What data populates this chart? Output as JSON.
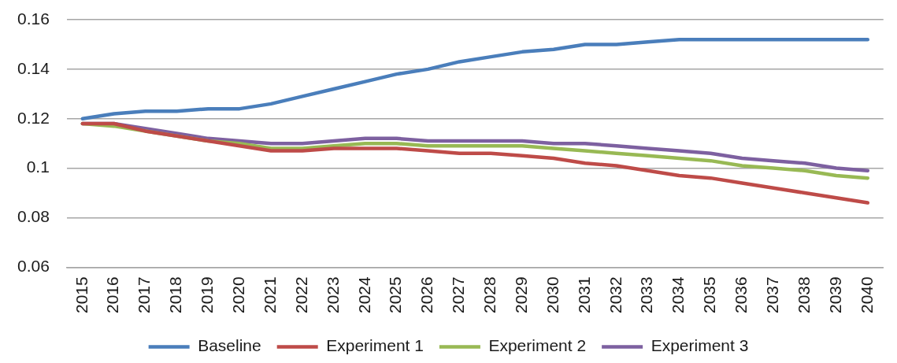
{
  "chart_data": {
    "type": "line",
    "categories": [
      "2015",
      "2016",
      "2017",
      "2018",
      "2019",
      "2020",
      "2021",
      "2022",
      "2023",
      "2024",
      "2025",
      "2026",
      "2027",
      "2028",
      "2029",
      "2030",
      "2031",
      "2032",
      "2033",
      "2034",
      "2035",
      "2036",
      "2037",
      "2038",
      "2039",
      "2040"
    ],
    "series": [
      {
        "name": "Baseline",
        "color": "#4a7ebb",
        "values": [
          0.12,
          0.122,
          0.123,
          0.123,
          0.124,
          0.124,
          0.126,
          0.129,
          0.132,
          0.135,
          0.138,
          0.14,
          0.143,
          0.145,
          0.147,
          0.148,
          0.15,
          0.15,
          0.151,
          0.152,
          0.152,
          0.152,
          0.152,
          0.152,
          0.152,
          0.152
        ]
      },
      {
        "name": "Experiment 1",
        "color": "#be4b48",
        "values": [
          0.118,
          0.118,
          0.115,
          0.113,
          0.111,
          0.109,
          0.107,
          0.107,
          0.108,
          0.108,
          0.108,
          0.107,
          0.106,
          0.106,
          0.105,
          0.104,
          0.102,
          0.101,
          0.099,
          0.097,
          0.096,
          0.094,
          0.092,
          0.09,
          0.088,
          0.086
        ]
      },
      {
        "name": "Experiment 2",
        "color": "#98b954",
        "values": [
          0.118,
          0.117,
          0.115,
          0.113,
          0.111,
          0.11,
          0.108,
          0.108,
          0.109,
          0.11,
          0.11,
          0.109,
          0.109,
          0.109,
          0.109,
          0.108,
          0.107,
          0.106,
          0.105,
          0.104,
          0.103,
          0.101,
          0.1,
          0.099,
          0.097,
          0.096
        ]
      },
      {
        "name": "Experiment 3",
        "color": "#7d60a0",
        "values": [
          0.118,
          0.118,
          0.116,
          0.114,
          0.112,
          0.111,
          0.11,
          0.11,
          0.111,
          0.112,
          0.112,
          0.111,
          0.111,
          0.111,
          0.111,
          0.11,
          0.11,
          0.109,
          0.108,
          0.107,
          0.106,
          0.104,
          0.103,
          0.102,
          0.1,
          0.099
        ]
      }
    ],
    "ylim": [
      0.06,
      0.16
    ],
    "yticks": [
      0.06,
      0.08,
      0.1,
      0.12,
      0.14,
      0.16
    ],
    "grid": "y",
    "legend": "bottom",
    "marker": "none",
    "line_style": "solid"
  }
}
